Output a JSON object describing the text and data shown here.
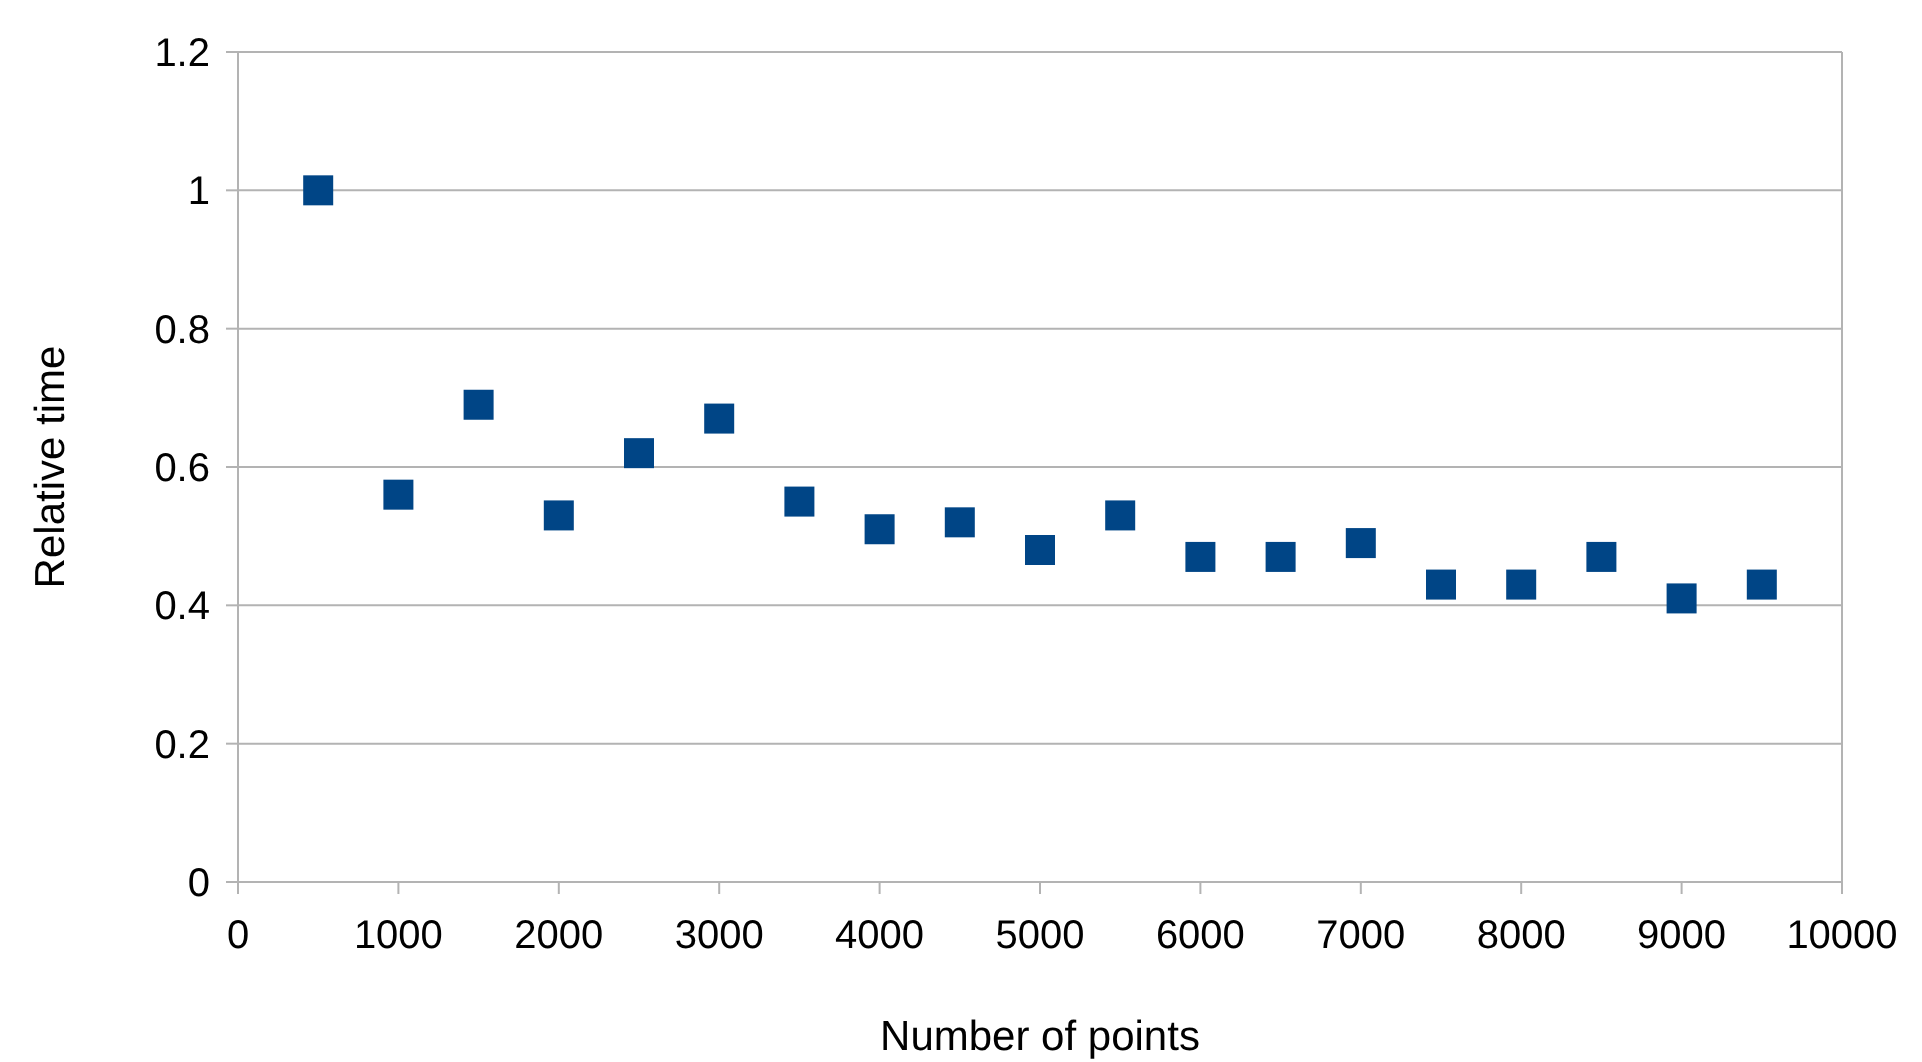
{
  "chart_data": {
    "type": "scatter",
    "xlabel": "Number of points",
    "ylabel": "Relative time",
    "x": [
      500,
      1000,
      1500,
      2000,
      2500,
      3000,
      3500,
      4000,
      4500,
      5000,
      5500,
      6000,
      6500,
      7000,
      7500,
      8000,
      8500,
      9000,
      9500
    ],
    "series": [
      {
        "color": "#004586",
        "values": [
          1.0,
          0.56,
          0.69,
          0.53,
          0.62,
          0.67,
          0.55,
          0.51,
          0.52,
          0.48,
          0.53,
          0.47,
          0.47,
          0.49,
          0.43,
          0.43,
          0.47,
          0.41,
          0.43
        ]
      }
    ],
    "xlim": [
      0,
      10000
    ],
    "xticks": [
      0,
      1000,
      2000,
      3000,
      4000,
      5000,
      6000,
      7000,
      8000,
      9000,
      10000
    ],
    "ylim": [
      0,
      1.2
    ],
    "yticks": [
      0,
      0.2,
      0.4,
      0.6,
      0.8,
      1,
      1.2
    ],
    "grid": "y",
    "marker": "square"
  }
}
